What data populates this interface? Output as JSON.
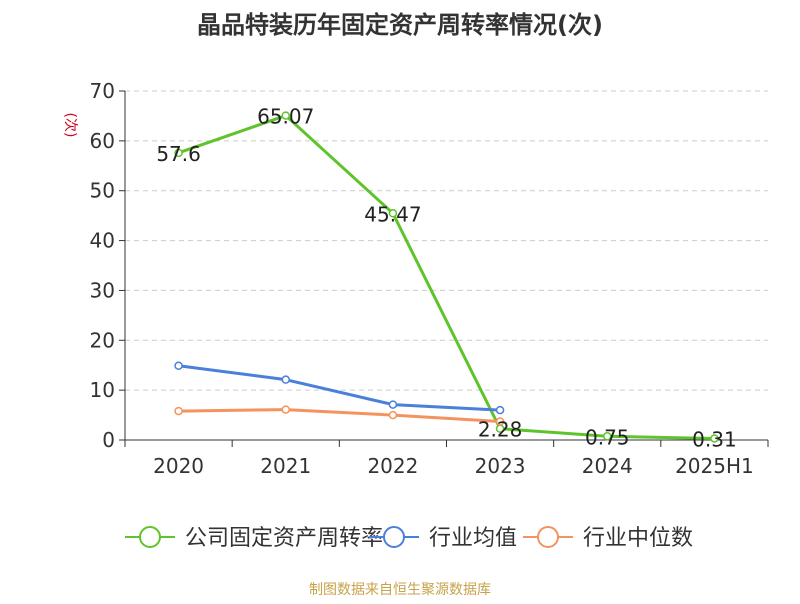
{
  "chart_data": {
    "type": "line",
    "title": "晶品特装历年固定资产周转率情况(次)",
    "ylabel": "(次)",
    "xlabel": "",
    "categories": [
      "2020",
      "2021",
      "2022",
      "2023",
      "2024",
      "2025H1"
    ],
    "ylim": [
      0,
      70
    ],
    "yticks": [
      0,
      10,
      20,
      30,
      40,
      50,
      60,
      70
    ],
    "grid": true,
    "legend_position": "bottom",
    "series": [
      {
        "name": "公司固定资产周转率",
        "color": "#5fc42b",
        "values": [
          57.6,
          65.07,
          45.47,
          2.28,
          0.75,
          0.31
        ],
        "labels": [
          "57.6",
          "65.07",
          "45.47",
          "2.28",
          "0.75",
          "0.31"
        ]
      },
      {
        "name": "行业均值",
        "color": "#4a7fdc",
        "values": [
          14.9,
          12.1,
          7.1,
          6.0,
          null,
          null
        ]
      },
      {
        "name": "行业中位数",
        "color": "#f5935e",
        "values": [
          5.8,
          6.1,
          5.0,
          3.7,
          null,
          null
        ]
      }
    ],
    "source": "制图数据来自恒生聚源数据库"
  }
}
